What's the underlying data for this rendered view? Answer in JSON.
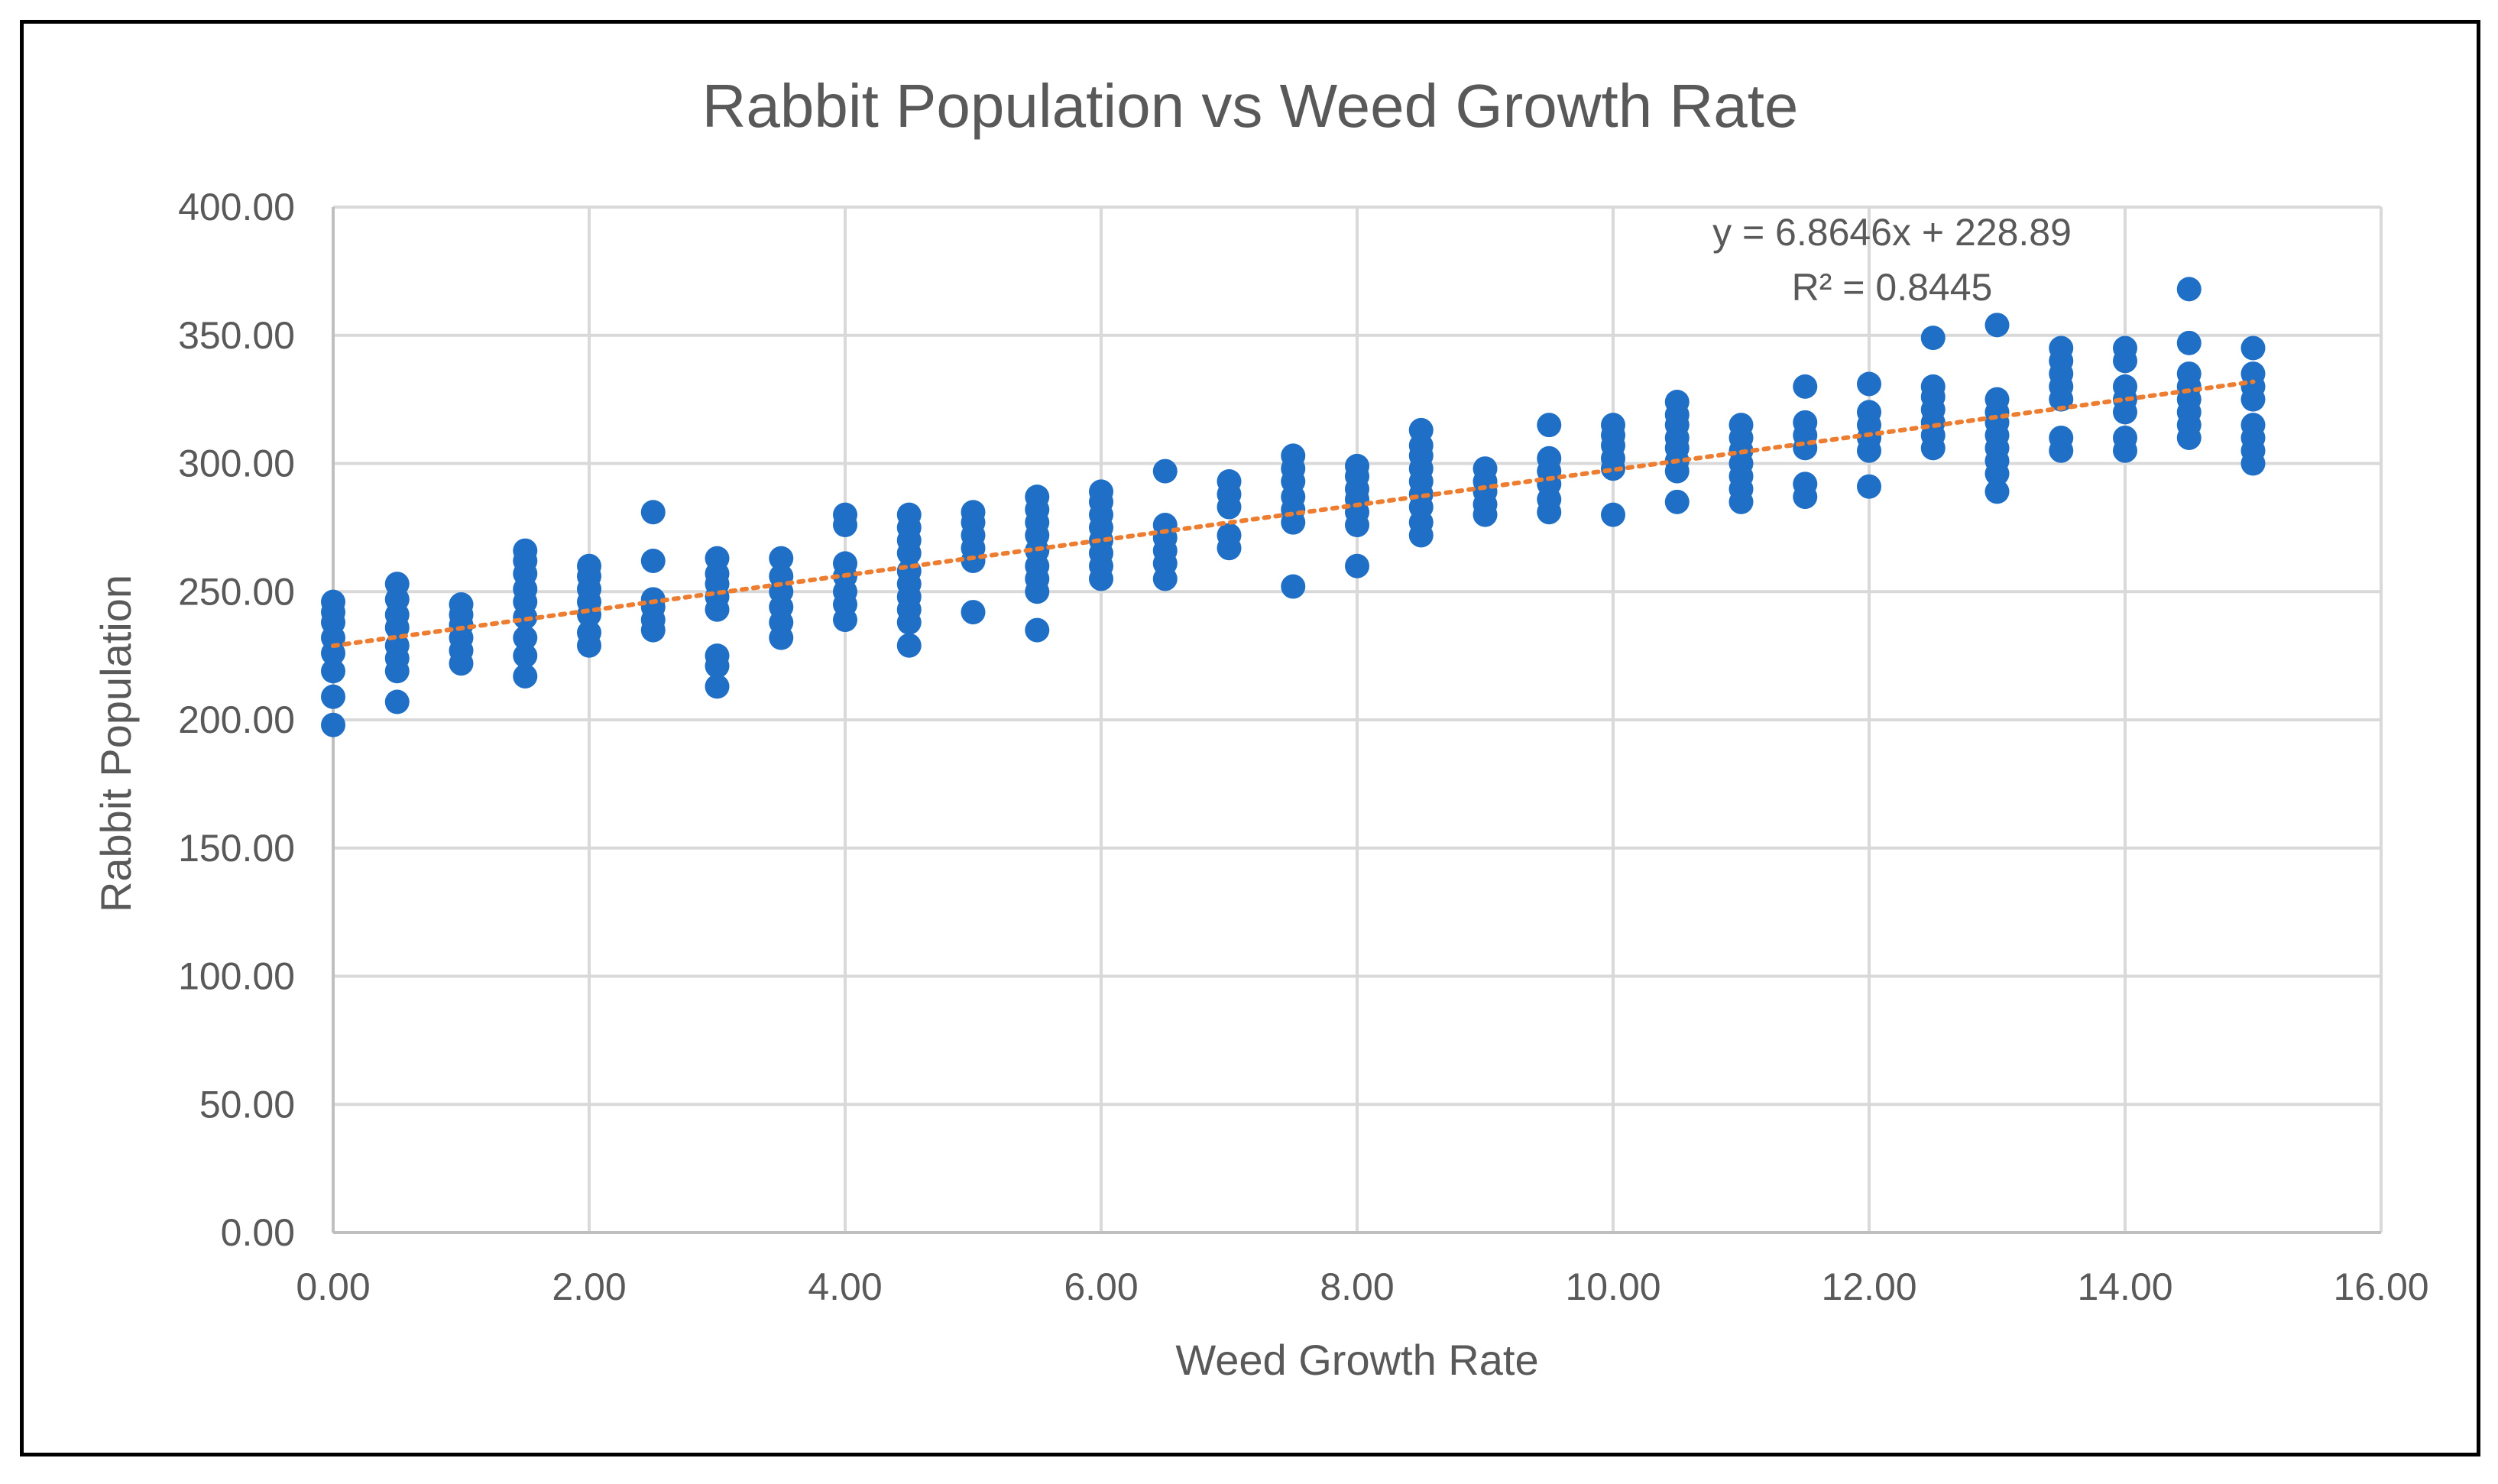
{
  "colors": {
    "point": "#1f6fc6",
    "trendline": "#ed7d31",
    "grid": "#d9d9d9",
    "axis": "#bfbfbf",
    "text": "#595959",
    "frame": "#000000"
  },
  "chart_data": {
    "type": "scatter",
    "title": "Rabbit Population vs Weed Growth Rate",
    "xlabel": "Weed Growth Rate",
    "ylabel": "Rabbit Population",
    "xlim": [
      0,
      16
    ],
    "ylim": [
      0,
      400
    ],
    "x_ticks": [
      "0.00",
      "2.00",
      "4.00",
      "6.00",
      "8.00",
      "10.00",
      "12.00",
      "14.00",
      "16.00"
    ],
    "y_ticks": [
      "0.00",
      "50.00",
      "100.00",
      "150.00",
      "200.00",
      "250.00",
      "300.00",
      "350.00",
      "400.00"
    ],
    "grid": true,
    "trendline": {
      "type": "linear",
      "style": "dotted",
      "slope": 6.8646,
      "intercept": 228.89,
      "x_range": [
        0,
        15
      ],
      "equation_label": "y = 6.8646x + 228.89",
      "r2_label": "R² = 0.8445"
    },
    "series": [
      {
        "name": "Rabbit Population",
        "points": [
          [
            0,
            198
          ],
          [
            0,
            209
          ],
          [
            0,
            219
          ],
          [
            0,
            226
          ],
          [
            0,
            232
          ],
          [
            0,
            238
          ],
          [
            0,
            242
          ],
          [
            0,
            246
          ],
          [
            0.5,
            207
          ],
          [
            0.5,
            219
          ],
          [
            0.5,
            224
          ],
          [
            0.5,
            229
          ],
          [
            0.5,
            236
          ],
          [
            0.5,
            241
          ],
          [
            0.5,
            247
          ],
          [
            0.5,
            253
          ],
          [
            1,
            222
          ],
          [
            1,
            227
          ],
          [
            1,
            232
          ],
          [
            1,
            237
          ],
          [
            1,
            241
          ],
          [
            1,
            245
          ],
          [
            1.5,
            217
          ],
          [
            1.5,
            225
          ],
          [
            1.5,
            232
          ],
          [
            1.5,
            240
          ],
          [
            1.5,
            246
          ],
          [
            1.5,
            251
          ],
          [
            1.5,
            257
          ],
          [
            1.5,
            262
          ],
          [
            1.5,
            266
          ],
          [
            2,
            229
          ],
          [
            2,
            234
          ],
          [
            2,
            241
          ],
          [
            2,
            246
          ],
          [
            2,
            251
          ],
          [
            2,
            256
          ],
          [
            2,
            260
          ],
          [
            2.5,
            235
          ],
          [
            2.5,
            239
          ],
          [
            2.5,
            244
          ],
          [
            2.5,
            247
          ],
          [
            2.5,
            262
          ],
          [
            2.5,
            281
          ],
          [
            3,
            213
          ],
          [
            3,
            221
          ],
          [
            3,
            225
          ],
          [
            3,
            243
          ],
          [
            3,
            248
          ],
          [
            3,
            253
          ],
          [
            3,
            257
          ],
          [
            3,
            263
          ],
          [
            3.5,
            232
          ],
          [
            3.5,
            238
          ],
          [
            3.5,
            244
          ],
          [
            3.5,
            250
          ],
          [
            3.5,
            256
          ],
          [
            3.5,
            263
          ],
          [
            4,
            239
          ],
          [
            4,
            245
          ],
          [
            4,
            250
          ],
          [
            4,
            256
          ],
          [
            4,
            261
          ],
          [
            4,
            276
          ],
          [
            4,
            280
          ],
          [
            4.5,
            229
          ],
          [
            4.5,
            238
          ],
          [
            4.5,
            243
          ],
          [
            4.5,
            248
          ],
          [
            4.5,
            253
          ],
          [
            4.5,
            258
          ],
          [
            4.5,
            265
          ],
          [
            4.5,
            270
          ],
          [
            4.5,
            275
          ],
          [
            4.5,
            280
          ],
          [
            5,
            242
          ],
          [
            5,
            262
          ],
          [
            5,
            267
          ],
          [
            5,
            272
          ],
          [
            5,
            277
          ],
          [
            5,
            281
          ],
          [
            5.5,
            235
          ],
          [
            5.5,
            250
          ],
          [
            5.5,
            255
          ],
          [
            5.5,
            260
          ],
          [
            5.5,
            266
          ],
          [
            5.5,
            272
          ],
          [
            5.5,
            277
          ],
          [
            5.5,
            282
          ],
          [
            5.5,
            287
          ],
          [
            6,
            255
          ],
          [
            6,
            260
          ],
          [
            6,
            265
          ],
          [
            6,
            270
          ],
          [
            6,
            275
          ],
          [
            6,
            280
          ],
          [
            6,
            285
          ],
          [
            6,
            289
          ],
          [
            6.5,
            255
          ],
          [
            6.5,
            261
          ],
          [
            6.5,
            266
          ],
          [
            6.5,
            271
          ],
          [
            6.5,
            276
          ],
          [
            6.5,
            297
          ],
          [
            7,
            267
          ],
          [
            7,
            272
          ],
          [
            7,
            283
          ],
          [
            7,
            288
          ],
          [
            7,
            293
          ],
          [
            7.5,
            252
          ],
          [
            7.5,
            277
          ],
          [
            7.5,
            282
          ],
          [
            7.5,
            287
          ],
          [
            7.5,
            293
          ],
          [
            7.5,
            298
          ],
          [
            7.5,
            303
          ],
          [
            8,
            260
          ],
          [
            8,
            276
          ],
          [
            8,
            281
          ],
          [
            8,
            286
          ],
          [
            8,
            290
          ],
          [
            8,
            295
          ],
          [
            8,
            299
          ],
          [
            8.5,
            272
          ],
          [
            8.5,
            277
          ],
          [
            8.5,
            283
          ],
          [
            8.5,
            288
          ],
          [
            8.5,
            293
          ],
          [
            8.5,
            298
          ],
          [
            8.5,
            303
          ],
          [
            8.5,
            307
          ],
          [
            8.5,
            313
          ],
          [
            9,
            280
          ],
          [
            9,
            284
          ],
          [
            9,
            289
          ],
          [
            9,
            293
          ],
          [
            9,
            298
          ],
          [
            9.5,
            281
          ],
          [
            9.5,
            286
          ],
          [
            9.5,
            292
          ],
          [
            9.5,
            297
          ],
          [
            9.5,
            302
          ],
          [
            9.5,
            315
          ],
          [
            10,
            280
          ],
          [
            10,
            298
          ],
          [
            10,
            302
          ],
          [
            10,
            307
          ],
          [
            10,
            311
          ],
          [
            10,
            315
          ],
          [
            10.5,
            285
          ],
          [
            10.5,
            297
          ],
          [
            10.5,
            301
          ],
          [
            10.5,
            306
          ],
          [
            10.5,
            310
          ],
          [
            10.5,
            315
          ],
          [
            10.5,
            319
          ],
          [
            10.5,
            324
          ],
          [
            11,
            285
          ],
          [
            11,
            290
          ],
          [
            11,
            295
          ],
          [
            11,
            300
          ],
          [
            11,
            305
          ],
          [
            11,
            310
          ],
          [
            11,
            315
          ],
          [
            11.5,
            287
          ],
          [
            11.5,
            292
          ],
          [
            11.5,
            306
          ],
          [
            11.5,
            311
          ],
          [
            11.5,
            316
          ],
          [
            11.5,
            330
          ],
          [
            12,
            291
          ],
          [
            12,
            305
          ],
          [
            12,
            310
          ],
          [
            12,
            315
          ],
          [
            12,
            320
          ],
          [
            12,
            331
          ],
          [
            12.5,
            306
          ],
          [
            12.5,
            311
          ],
          [
            12.5,
            316
          ],
          [
            12.5,
            321
          ],
          [
            12.5,
            326
          ],
          [
            12.5,
            330
          ],
          [
            12.5,
            349
          ],
          [
            13,
            289
          ],
          [
            13,
            296
          ],
          [
            13,
            301
          ],
          [
            13,
            306
          ],
          [
            13,
            311
          ],
          [
            13,
            316
          ],
          [
            13,
            320
          ],
          [
            13,
            325
          ],
          [
            13,
            354
          ],
          [
            13.5,
            305
          ],
          [
            13.5,
            310
          ],
          [
            13.5,
            325
          ],
          [
            13.5,
            330
          ],
          [
            13.5,
            335
          ],
          [
            13.5,
            340
          ],
          [
            13.5,
            345
          ],
          [
            14,
            305
          ],
          [
            14,
            310
          ],
          [
            14,
            320
          ],
          [
            14,
            325
          ],
          [
            14,
            330
          ],
          [
            14,
            340
          ],
          [
            14,
            345
          ],
          [
            14.5,
            310
          ],
          [
            14.5,
            315
          ],
          [
            14.5,
            320
          ],
          [
            14.5,
            325
          ],
          [
            14.5,
            330
          ],
          [
            14.5,
            335
          ],
          [
            14.5,
            347
          ],
          [
            14.5,
            368
          ],
          [
            15,
            300
          ],
          [
            15,
            305
          ],
          [
            15,
            310
          ],
          [
            15,
            315
          ],
          [
            15,
            325
          ],
          [
            15,
            330
          ],
          [
            15,
            335
          ],
          [
            15,
            345
          ]
        ]
      }
    ]
  }
}
